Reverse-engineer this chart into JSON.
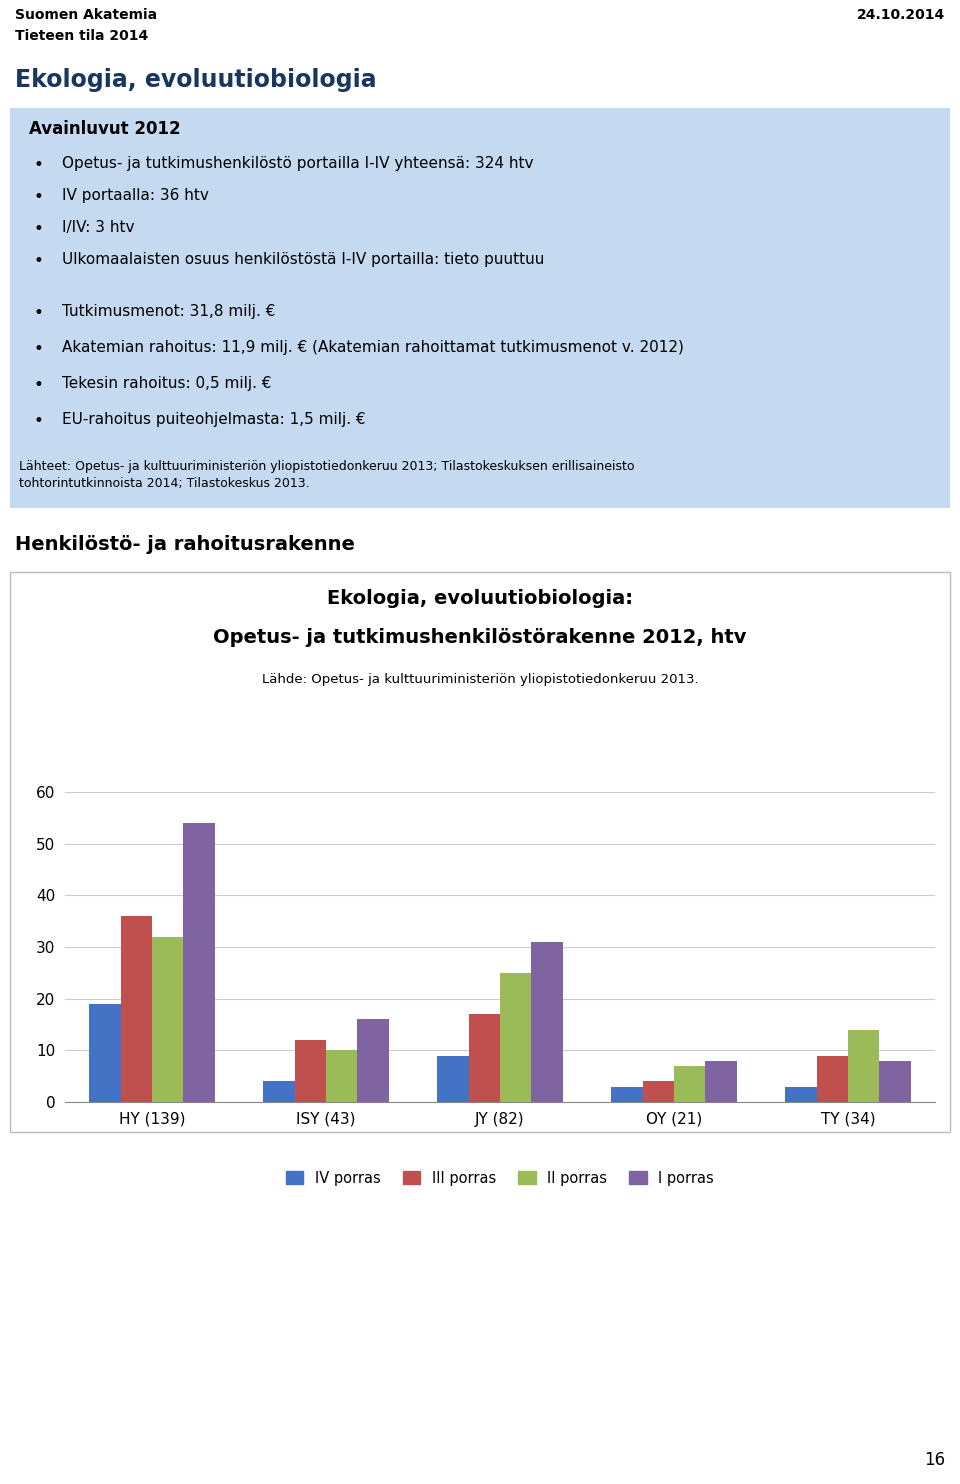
{
  "page_title_left": "Suomen Akatemia\nTieteen tila 2014",
  "page_title_right": "24.10.2014",
  "section_title": "Ekologia, evoluutiobiologia",
  "box_title": "Avainluvut 2012",
  "box_bullets_1": [
    "Opetus- ja tutkimushenkilöstö portailla I-IV yhteensä: 324 htv",
    "IV portaalla: 36 htv",
    "I/IV: 3 htv",
    "Ulkomaalaisten osuus henkilöstöstä I-IV portailla: tieto puuttuu"
  ],
  "box_bullets_2": [
    "Tutkimusmenot: 31,8 milj. €",
    "Akatemian rahoitus: 11,9 milj. € (Akatemian rahoittamat tutkimusmenot v. 2012)",
    "Tekesin rahoitus: 0,5 milj. €",
    "EU-rahoitus puiteohjelmasta: 1,5 milj. €"
  ],
  "box_footer": "Lähteet: Opetus- ja kulttuuriministeriön yliopistotiedonkeruu 2013; Tilastokeskuksen erillisaineisto\ntohtorintutkinnoista 2014; Tilastokeskus 2013.",
  "section2_title": "Henkilöstö- ja rahoitusrakenne",
  "chart_title_line1": "Ekologia, evoluutiobiologia:",
  "chart_title_line2": "Opetus- ja tutkimushenkilöstörakenne 2012, htv",
  "chart_subtitle": "Lähde: Opetus- ja kulttuuriministeriön yliopistotiedonkeruu 2013.",
  "categories": [
    "HY (139)",
    "ISY (43)",
    "JY (82)",
    "OY (21)",
    "TY (34)"
  ],
  "series": {
    "IV porras": [
      19,
      4,
      9,
      3,
      3
    ],
    "III porras": [
      36,
      12,
      17,
      4,
      9
    ],
    "II porras": [
      32,
      10,
      25,
      7,
      14
    ],
    "I porras": [
      54,
      16,
      31,
      8,
      8
    ]
  },
  "colors": {
    "IV porras": "#4472C4",
    "III porras": "#C0504D",
    "II porras": "#9BBB59",
    "I porras": "#8064A2"
  },
  "ylim": [
    0,
    60
  ],
  "yticks": [
    0,
    10,
    20,
    30,
    40,
    50,
    60
  ],
  "box_bg_color": "#C5D9F1",
  "section_title_color": "#17375E",
  "page_number": "16",
  "bar_width": 0.18
}
